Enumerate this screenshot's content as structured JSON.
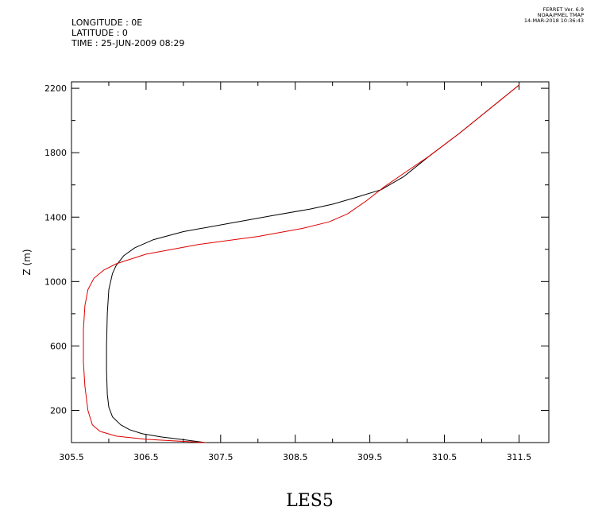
{
  "header": {
    "longitude": "LONGITUDE : 0E",
    "latitude": "LATITUDE : 0",
    "time": "TIME : 25-JUN-2009 08:29"
  },
  "credit": {
    "line1": "FERRET Ver. 6.9",
    "line2": "NOAA/PMEL TMAP",
    "line3": "14-MAR-2018 10:36:43"
  },
  "chart_data": {
    "type": "line",
    "title": "LES5",
    "xlabel": "",
    "ylabel": "Z (m)",
    "xlim": [
      305.5,
      311.9
    ],
    "ylim": [
      0,
      2240
    ],
    "xticks": [
      305.5,
      306.5,
      307.5,
      308.5,
      309.5,
      310.5,
      311.5
    ],
    "xtick_labels": [
      "305.5",
      "306.5",
      "307.5",
      "308.5",
      "309.5",
      "310.5",
      "311.5"
    ],
    "yticks": [
      200,
      600,
      1000,
      1400,
      1800,
      2200
    ],
    "ytick_labels": [
      "200",
      "600",
      "1000",
      "1400",
      "1800",
      "2200"
    ],
    "grid": false,
    "series": [
      {
        "color": "#000000",
        "x": [
          307.3,
          306.96,
          306.7,
          306.45,
          306.28,
          306.16,
          306.05,
          306.0,
          305.98,
          305.97,
          305.97,
          305.98,
          306.0,
          306.05,
          306.1,
          306.2,
          306.35,
          306.6,
          307.0,
          307.6,
          308.2,
          308.7,
          309.0,
          309.3,
          309.65,
          309.95,
          310.3,
          310.7,
          311.1,
          311.5
        ],
        "y": [
          0,
          20,
          35,
          55,
          80,
          110,
          160,
          220,
          300,
          450,
          600,
          800,
          950,
          1050,
          1100,
          1160,
          1210,
          1260,
          1310,
          1360,
          1410,
          1450,
          1480,
          1520,
          1570,
          1650,
          1780,
          1920,
          2070,
          2220
        ]
      },
      {
        "color": "#e00000",
        "x": [
          307.3,
          306.9,
          306.5,
          306.1,
          305.88,
          305.78,
          305.72,
          305.68,
          305.66,
          305.66,
          305.68,
          305.72,
          305.8,
          305.93,
          306.1,
          306.5,
          307.2,
          308.0,
          308.6,
          308.95,
          309.2,
          309.45,
          309.7,
          309.95,
          310.3,
          310.7,
          311.1,
          311.5
        ],
        "y": [
          0,
          10,
          20,
          40,
          70,
          110,
          200,
          350,
          500,
          700,
          850,
          950,
          1020,
          1070,
          1110,
          1170,
          1230,
          1280,
          1330,
          1370,
          1420,
          1500,
          1590,
          1670,
          1780,
          1920,
          2070,
          2220
        ]
      }
    ]
  }
}
